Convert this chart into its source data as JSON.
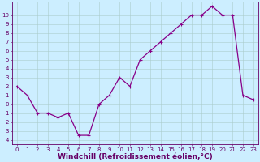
{
  "x": [
    0,
    1,
    2,
    3,
    4,
    5,
    6,
    7,
    8,
    9,
    10,
    11,
    12,
    13,
    14,
    15,
    16,
    17,
    18,
    19,
    20,
    21,
    22,
    23
  ],
  "y": [
    2,
    1,
    -1,
    -1,
    -1.5,
    -1,
    -3.5,
    -3.5,
    0,
    1,
    3,
    2,
    5,
    6,
    7,
    8,
    9,
    10,
    10,
    11,
    10,
    10,
    1,
    0.5
  ],
  "line_color": "#880088",
  "marker": "+",
  "marker_size": 3,
  "marker_lw": 0.8,
  "line_width": 0.9,
  "bg_color": "#cceeff",
  "grid_color": "#aacccc",
  "axis_color": "#660066",
  "xlabel": "Windchill (Refroidissement éolien,°C)",
  "xlabel_fontsize": 6.5,
  "tick_fontsize": 5,
  "ytick_labels": [
    "10",
    "9",
    "8",
    "7",
    "6",
    "5",
    "4",
    "3",
    "2",
    "1",
    "0",
    "1",
    "2",
    "3",
    "4"
  ],
  "yticks": [
    10,
    9,
    8,
    7,
    6,
    5,
    4,
    3,
    2,
    1,
    0,
    -1,
    -2,
    -3,
    -4
  ],
  "xticks": [
    0,
    1,
    2,
    3,
    4,
    5,
    6,
    7,
    8,
    9,
    10,
    11,
    12,
    13,
    14,
    15,
    16,
    17,
    18,
    19,
    20,
    21,
    22,
    23
  ],
  "ylim": [
    -4.5,
    11.5
  ],
  "xlim": [
    -0.5,
    23.5
  ]
}
